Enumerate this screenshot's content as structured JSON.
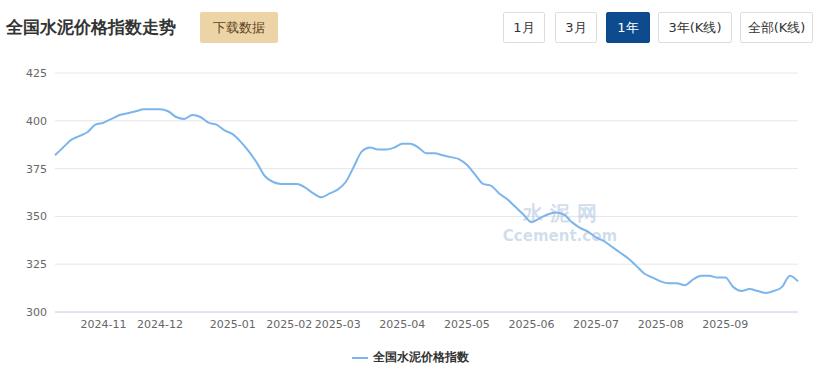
{
  "chart_data": {
    "type": "line",
    "title": "全国水泥价格指数走势",
    "categories": [
      null,
      null,
      null,
      null,
      null,
      null,
      "2024-11",
      null,
      null,
      null,
      null,
      null,
      null,
      "2024-12",
      null,
      null,
      null,
      null,
      null,
      null,
      null,
      null,
      "2025-01",
      null,
      null,
      null,
      null,
      null,
      null,
      "2025-02",
      null,
      null,
      null,
      null,
      null,
      "2025-03",
      null,
      null,
      null,
      null,
      null,
      null,
      null,
      "2025-04",
      null,
      null,
      null,
      null,
      null,
      null,
      null,
      "2025-05",
      null,
      null,
      null,
      null,
      null,
      null,
      null,
      "2025-06",
      null,
      null,
      null,
      null,
      null,
      null,
      null,
      "2025-07",
      null,
      null,
      null,
      null,
      null,
      null,
      null,
      "2025-08",
      null,
      null,
      null,
      null,
      null,
      null,
      null,
      "2025-09",
      null,
      null,
      null,
      null,
      null,
      null,
      null,
      null,
      null
    ],
    "series": [
      {
        "name": "全国水泥价格指数",
        "color": "#7cb5ec",
        "values": [
          382,
          386,
          390,
          392,
          394,
          398,
          399,
          401,
          403,
          404,
          405,
          406,
          406,
          406,
          405,
          402,
          401,
          403,
          402,
          399,
          398,
          395,
          393,
          389,
          384,
          378,
          371,
          368,
          367,
          367,
          367,
          365,
          362,
          360,
          362,
          364,
          368,
          376,
          384,
          386,
          385,
          385,
          386,
          388,
          388,
          386,
          383,
          383,
          382,
          381,
          380,
          377,
          372,
          367,
          366,
          362,
          359,
          355,
          351,
          347,
          349,
          351,
          352,
          351,
          347,
          344,
          342,
          339,
          337,
          334,
          331,
          328,
          324,
          320,
          318,
          316,
          315,
          315,
          314,
          317,
          319,
          319,
          318,
          318,
          313,
          311,
          312,
          311,
          310,
          311,
          313,
          319,
          316
        ]
      }
    ],
    "ylim": [
      300,
      425
    ],
    "yticks": [
      300,
      325,
      350,
      375,
      400,
      425
    ],
    "grid": true,
    "legend": "bottom"
  },
  "header": {
    "download_button": "下载数据",
    "period_buttons": [
      "1月",
      "3月",
      "1年",
      "3年(K线)",
      "全部(K线)"
    ],
    "active_period": "1年"
  },
  "watermark": [
    "水 泥 网",
    "Ccement.com"
  ]
}
